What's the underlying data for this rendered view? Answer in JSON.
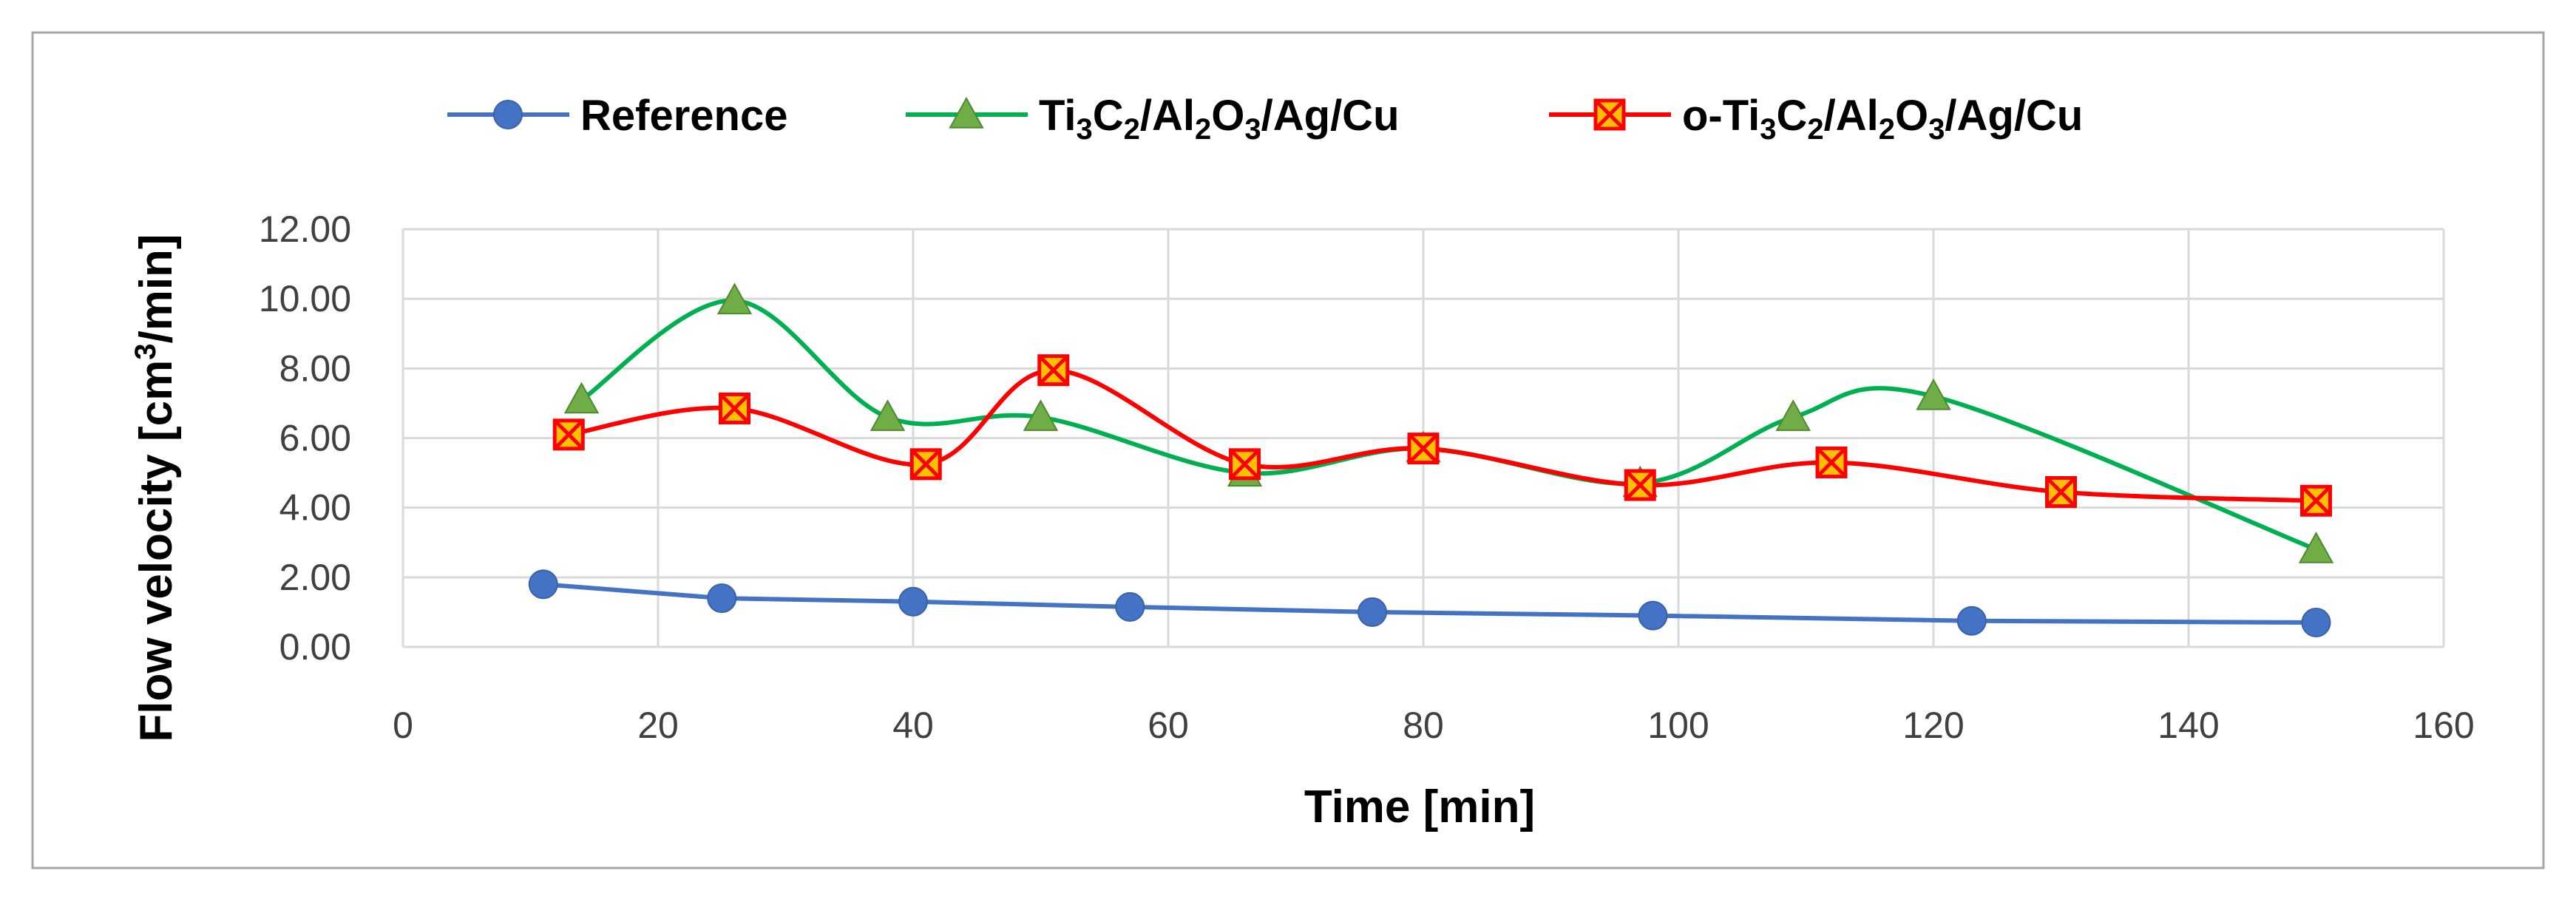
{
  "chart_data": {
    "type": "line",
    "title": "",
    "xlabel": "Time [min]",
    "ylabel": "Flow velocity [cm³/min]",
    "xlim": [
      0,
      160
    ],
    "ylim": [
      0,
      12
    ],
    "x_ticks": [
      0,
      20,
      40,
      60,
      80,
      100,
      120,
      140,
      160
    ],
    "y_ticks": [
      0,
      2,
      4,
      6,
      8,
      10,
      12
    ],
    "x_tick_labels": [
      "0",
      "20",
      "40",
      "60",
      "80",
      "100",
      "120",
      "140",
      "160"
    ],
    "y_tick_labels": [
      "0.00",
      "2.00",
      "4.00",
      "6.00",
      "8.00",
      "10.00",
      "12.00"
    ],
    "grid": true,
    "legend_position": "top",
    "series": [
      {
        "name": "Reference",
        "color": "#4472C4",
        "marker": "circle",
        "smooth": false,
        "points": [
          [
            11,
            1.8
          ],
          [
            25,
            1.4
          ],
          [
            40,
            1.3
          ],
          [
            57,
            1.15
          ],
          [
            76,
            1.0
          ],
          [
            98,
            0.9
          ],
          [
            123,
            0.75
          ],
          [
            150,
            0.7
          ]
        ]
      },
      {
        "name": "Ti3C2/Al2O3/Ag/Cu",
        "color": "#00B050",
        "marker_fill": "#70AD47",
        "marker": "triangle",
        "smooth": true,
        "points": [
          [
            14,
            7.1
          ],
          [
            26,
            9.95
          ],
          [
            38,
            6.6
          ],
          [
            50,
            6.6
          ],
          [
            66,
            5.0
          ],
          [
            80,
            5.7
          ],
          [
            97,
            4.7
          ],
          [
            109,
            6.6
          ],
          [
            120,
            7.2
          ],
          [
            150,
            2.8
          ]
        ]
      },
      {
        "name": "o-Ti3C2/Al2O3/Ag/Cu",
        "color": "#FF0000",
        "marker_fill": "#FFC000",
        "marker": "square-x",
        "smooth": true,
        "points": [
          [
            13,
            6.1
          ],
          [
            26,
            6.85
          ],
          [
            41,
            5.25
          ],
          [
            51,
            7.95
          ],
          [
            66,
            5.25
          ],
          [
            80,
            5.7
          ],
          [
            97,
            4.65
          ],
          [
            112,
            5.3
          ],
          [
            130,
            4.45
          ],
          [
            150,
            4.2
          ]
        ]
      }
    ]
  }
}
